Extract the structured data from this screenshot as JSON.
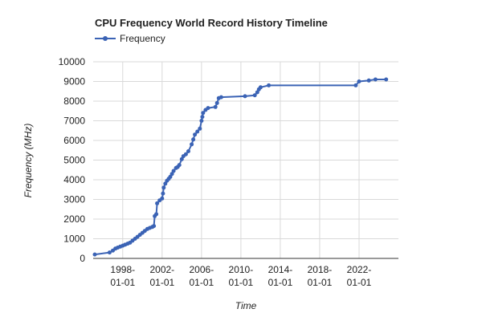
{
  "chart_data": {
    "type": "line",
    "title": "CPU Frequency World Record History Timeline",
    "xlabel": "Time",
    "ylabel": "Frequency (MHz)",
    "ylim": [
      0,
      10000
    ],
    "xlim": [
      "1995-01-01",
      "2025-12-31"
    ],
    "y_ticks": [
      "0",
      "1000",
      "2000",
      "3000",
      "4000",
      "5000",
      "6000",
      "7000",
      "8000",
      "9000",
      "10000"
    ],
    "x_ticks": [
      {
        "date": "1998-01-01",
        "line1": "1998-",
        "line2": "01-01"
      },
      {
        "date": "2002-01-01",
        "line1": "2002-",
        "line2": "01-01"
      },
      {
        "date": "2006-01-01",
        "line1": "2006-",
        "line2": "01-01"
      },
      {
        "date": "2010-01-01",
        "line1": "2010-",
        "line2": "01-01"
      },
      {
        "date": "2014-01-01",
        "line1": "2014-",
        "line2": "01-01"
      },
      {
        "date": "2018-01-01",
        "line1": "2018-",
        "line2": "01-01"
      },
      {
        "date": "2022-01-01",
        "line1": "2022-",
        "line2": "01-01"
      }
    ],
    "grid": true,
    "legend_position": "top-left",
    "series": [
      {
        "name": "Frequency",
        "color": "#3b63b5",
        "points": [
          [
            "1995-03-01",
            200
          ],
          [
            "1996-09-01",
            300
          ],
          [
            "1997-01-01",
            400
          ],
          [
            "1997-04-01",
            500
          ],
          [
            "1997-07-01",
            550
          ],
          [
            "1997-10-01",
            600
          ],
          [
            "1998-01-01",
            650
          ],
          [
            "1998-04-01",
            700
          ],
          [
            "1998-07-01",
            750
          ],
          [
            "1998-10-01",
            800
          ],
          [
            "1999-01-01",
            900
          ],
          [
            "1999-04-01",
            1000
          ],
          [
            "1999-07-01",
            1100
          ],
          [
            "1999-10-01",
            1200
          ],
          [
            "2000-01-01",
            1300
          ],
          [
            "2000-04-01",
            1400
          ],
          [
            "2000-07-01",
            1500
          ],
          [
            "2000-10-01",
            1550
          ],
          [
            "2001-01-01",
            1600
          ],
          [
            "2001-03-01",
            1650
          ],
          [
            "2001-04-01",
            2150
          ],
          [
            "2001-06-01",
            2250
          ],
          [
            "2001-07-01",
            2800
          ],
          [
            "2001-10-01",
            2950
          ],
          [
            "2002-01-01",
            3050
          ],
          [
            "2002-02-01",
            3300
          ],
          [
            "2002-03-01",
            3600
          ],
          [
            "2002-05-01",
            3800
          ],
          [
            "2002-07-01",
            3950
          ],
          [
            "2002-09-01",
            4050
          ],
          [
            "2002-11-01",
            4150
          ],
          [
            "2003-01-01",
            4300
          ],
          [
            "2003-03-01",
            4450
          ],
          [
            "2003-06-01",
            4600
          ],
          [
            "2003-08-01",
            4650
          ],
          [
            "2003-10-01",
            4750
          ],
          [
            "2004-01-01",
            5050
          ],
          [
            "2004-03-01",
            5200
          ],
          [
            "2004-06-01",
            5300
          ],
          [
            "2004-09-01",
            5450
          ],
          [
            "2005-01-01",
            5800
          ],
          [
            "2005-03-01",
            6050
          ],
          [
            "2005-05-01",
            6300
          ],
          [
            "2005-08-01",
            6450
          ],
          [
            "2005-11-01",
            6600
          ],
          [
            "2006-01-01",
            7000
          ],
          [
            "2006-02-01",
            7200
          ],
          [
            "2006-03-01",
            7400
          ],
          [
            "2006-06-01",
            7550
          ],
          [
            "2006-09-01",
            7650
          ],
          [
            "2007-06-01",
            7700
          ],
          [
            "2007-08-01",
            7900
          ],
          [
            "2007-10-01",
            8150
          ],
          [
            "2008-01-01",
            8200
          ],
          [
            "2010-06-01",
            8250
          ],
          [
            "2011-06-01",
            8300
          ],
          [
            "2011-09-01",
            8450
          ],
          [
            "2011-11-01",
            8600
          ],
          [
            "2012-01-01",
            8700
          ],
          [
            "2012-11-01",
            8800
          ],
          [
            "2021-09-01",
            8800
          ],
          [
            "2022-01-01",
            9000
          ],
          [
            "2023-01-01",
            9050
          ],
          [
            "2023-09-01",
            9100
          ],
          [
            "2024-10-01",
            9100
          ]
        ]
      }
    ]
  }
}
